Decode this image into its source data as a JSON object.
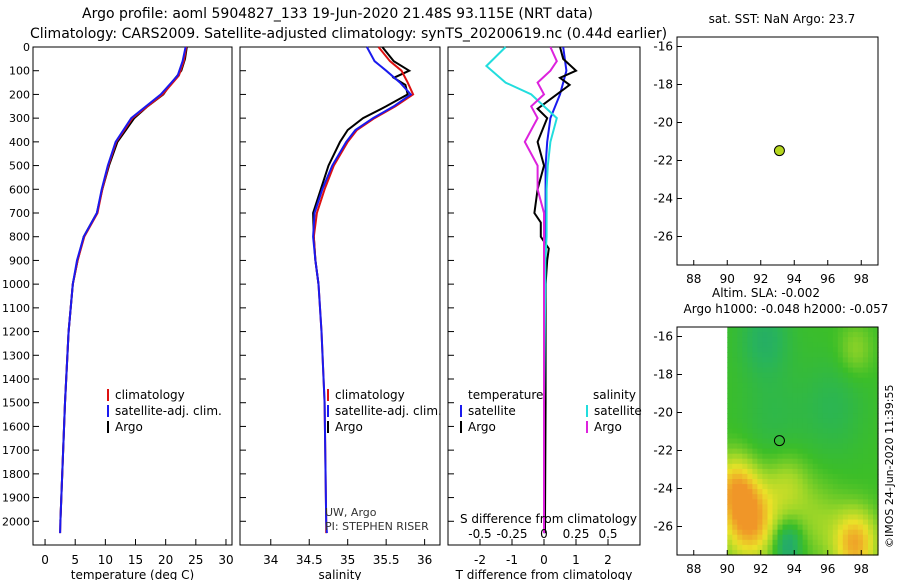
{
  "header": {
    "line1": "Argo profile: aoml 5904827_133 19-Jun-2020 21.48S 93.115E (NRT data)",
    "line2": "Climatology: CARS2009. Satellite-adjusted climatology: synTS_20200619.nc (0.44d earlier)"
  },
  "colors": {
    "climatology": "#dd1111",
    "satellite": "#1a1aee",
    "argo": "#000000",
    "sat_salinity": "#22dddd",
    "argo_salinity": "#dd22dd",
    "dot": "#b5d61e"
  },
  "chart_data": [
    {
      "id": "temperature",
      "type": "line",
      "xlabel": "temperature (deg C)",
      "ylabel": "",
      "xlim": [
        -2,
        31
      ],
      "ylim": [
        2100,
        0
      ],
      "xticks": [
        0,
        5,
        10,
        15,
        20,
        25,
        30
      ],
      "yticks": [
        0,
        100,
        200,
        300,
        400,
        500,
        600,
        700,
        800,
        900,
        1000,
        1100,
        1200,
        1300,
        1400,
        1500,
        1600,
        1700,
        1800,
        1900,
        2000
      ],
      "legend": [
        "climatology",
        "satellite-adj. clim.",
        "Argo"
      ],
      "series": [
        {
          "name": "climatology",
          "depth": [
            0,
            60,
            120,
            200,
            300,
            400,
            500,
            600,
            700,
            800,
            900,
            1000,
            1200,
            1500,
            2000,
            2050
          ],
          "values": [
            23.4,
            23,
            22.2,
            19.5,
            14.5,
            11.8,
            10.5,
            9.5,
            8.7,
            6.5,
            5.4,
            4.6,
            3.9,
            3.3,
            2.55,
            2.5
          ]
        },
        {
          "name": "satellite-adj. clim.",
          "depth": [
            0,
            60,
            120,
            200,
            300,
            400,
            500,
            600,
            700,
            800,
            900,
            1000,
            1200,
            1500,
            2000,
            2050
          ],
          "values": [
            23.3,
            22.8,
            22,
            19.2,
            14.3,
            11.7,
            10.4,
            9.4,
            8.6,
            6.4,
            5.3,
            4.6,
            3.9,
            3.3,
            2.55,
            2.5
          ]
        },
        {
          "name": "Argo",
          "depth": [
            0,
            50,
            100,
            150,
            200,
            250,
            300,
            400,
            500,
            600,
            700,
            800,
            900,
            1000,
            1200,
            1500,
            2000
          ],
          "values": [
            23.5,
            23.2,
            22.6,
            21,
            19.6,
            17,
            14.8,
            12,
            10.6,
            9.5,
            8.6,
            6.4,
            5.4,
            4.6,
            3.9,
            3.3,
            2.55
          ]
        }
      ]
    },
    {
      "id": "salinity",
      "type": "line",
      "xlabel": "salinity",
      "ylabel": "",
      "xlim": [
        33.6,
        36.2
      ],
      "ylim": [
        2100,
        0
      ],
      "xticks": [
        34,
        34.5,
        35,
        35.5,
        36
      ],
      "legend": [
        "climatology",
        "satellite-adj. clim.",
        "Argo"
      ],
      "annotations": [
        "UW, Argo",
        "PI: STEPHEN RISER"
      ],
      "series": [
        {
          "name": "climatology",
          "depth": [
            0,
            60,
            100,
            150,
            200,
            250,
            300,
            350,
            400,
            500,
            600,
            700,
            800,
            900,
            1000,
            1200,
            1500,
            2000,
            2050
          ],
          "values": [
            35.4,
            35.55,
            35.7,
            35.78,
            35.85,
            35.62,
            35.35,
            35.12,
            35,
            34.82,
            34.7,
            34.6,
            34.56,
            34.58,
            34.62,
            34.66,
            34.7,
            34.72,
            34.72
          ]
        },
        {
          "name": "satellite-adj. clim.",
          "depth": [
            0,
            60,
            100,
            150,
            200,
            250,
            300,
            350,
            400,
            500,
            600,
            700,
            800,
            900,
            1000,
            1200,
            1500,
            2000,
            2050
          ],
          "values": [
            35.25,
            35.35,
            35.5,
            35.68,
            35.82,
            35.6,
            35.33,
            35.1,
            34.98,
            34.8,
            34.67,
            34.57,
            34.55,
            34.58,
            34.62,
            34.66,
            34.7,
            34.72,
            34.73
          ]
        },
        {
          "name": "Argo",
          "depth": [
            0,
            60,
            100,
            130,
            160,
            200,
            250,
            300,
            350,
            400,
            500,
            600,
            700,
            800,
            900,
            1000
          ],
          "values": [
            35.45,
            35.6,
            35.8,
            35.6,
            35.75,
            35.78,
            35.5,
            35.2,
            35.0,
            34.9,
            34.75,
            34.65,
            34.55,
            34.56,
            34.58,
            34.62
          ]
        }
      ]
    },
    {
      "id": "difference",
      "type": "line",
      "xlabel": "T difference from climatology",
      "ylabel": "",
      "inner_label": "S difference from climatology",
      "xlim": [
        -3,
        3
      ],
      "ylim": [
        2100,
        0
      ],
      "xticks": [
        -2,
        -1,
        0,
        1,
        2
      ],
      "xticks2": [
        -0.5,
        -0.25,
        0,
        0.25,
        0.5
      ],
      "legend_left_title": "temperature",
      "legend_right_title": "salinity",
      "legend_left": [
        "satellite",
        "Argo"
      ],
      "legend_right": [
        "satellite",
        "Argo"
      ],
      "series": [
        {
          "name": "temperature satellite",
          "depth": [
            0,
            100,
            200,
            300,
            400,
            500,
            600,
            700,
            800,
            900,
            1000,
            1500,
            2000,
            2050
          ],
          "values": [
            0.6,
            0.7,
            0.5,
            0.2,
            0.1,
            0.05,
            0.05,
            0.05,
            0.05,
            0.05,
            0.05,
            0.02,
            0.02,
            0.02
          ]
        },
        {
          "name": "temperature Argo",
          "depth": [
            0,
            50,
            100,
            130,
            160,
            200,
            260,
            300,
            400,
            500,
            600,
            700,
            740,
            800,
            850,
            900,
            1000,
            1500,
            2000,
            2050
          ],
          "values": [
            0.5,
            0.6,
            1.0,
            0.5,
            0.8,
            0.4,
            -0.2,
            0.1,
            -0.2,
            0,
            -0.2,
            -0.3,
            -0.1,
            -0.1,
            0.15,
            0.1,
            0.05,
            0.05,
            0.03,
            0.03
          ]
        },
        {
          "name": "salinity satellite",
          "depth": [
            0,
            80,
            150,
            200,
            300,
            400,
            500,
            600,
            700,
            800,
            900,
            1000,
            1500,
            2000,
            2050
          ],
          "values": [
            -0.3,
            -0.45,
            -0.3,
            -0.1,
            0.1,
            0.05,
            0.03,
            0.02,
            0.02,
            0.02,
            0.01,
            0.01,
            0.0,
            0.0,
            0.0
          ]
        },
        {
          "name": "salinity Argo",
          "depth": [
            0,
            60,
            100,
            150,
            200,
            250,
            300,
            400,
            500,
            600,
            700,
            800,
            900,
            1000,
            1500,
            2000,
            2050
          ],
          "values": [
            0.05,
            0.1,
            0.05,
            -0.05,
            0.0,
            -0.1,
            -0.05,
            -0.15,
            -0.05,
            -0.05,
            0.0,
            0.0,
            0.0,
            0.0,
            0.0,
            0.0,
            0.0
          ]
        }
      ]
    },
    {
      "id": "sst_map",
      "type": "scatter",
      "title": "sat. SST: NaN Argo: 23.7",
      "xlim": [
        87,
        99
      ],
      "ylim": [
        -27.5,
        -15.5
      ],
      "xticks": [
        88,
        90,
        92,
        94,
        96,
        98
      ],
      "yticks": [
        -16,
        -18,
        -20,
        -22,
        -24,
        -26
      ],
      "points": [
        {
          "x": 93.115,
          "y": -21.48
        }
      ]
    },
    {
      "id": "sla_map",
      "type": "heatmap",
      "title_line1": "Altim. SLA: -0.002",
      "title_line2": "Argo h1000: -0.048 h2000: -0.057",
      "xlim": [
        87,
        99
      ],
      "ylim": [
        -27.5,
        -15.5
      ],
      "xticks": [
        88,
        90,
        92,
        94,
        96,
        98
      ],
      "yticks": [
        -16,
        -18,
        -20,
        -22,
        -24,
        -26
      ],
      "points": [
        {
          "x": 93.115,
          "y": -21.48
        }
      ],
      "side_label": "©IMOS 24-Jun-2020 11:39:55"
    }
  ]
}
